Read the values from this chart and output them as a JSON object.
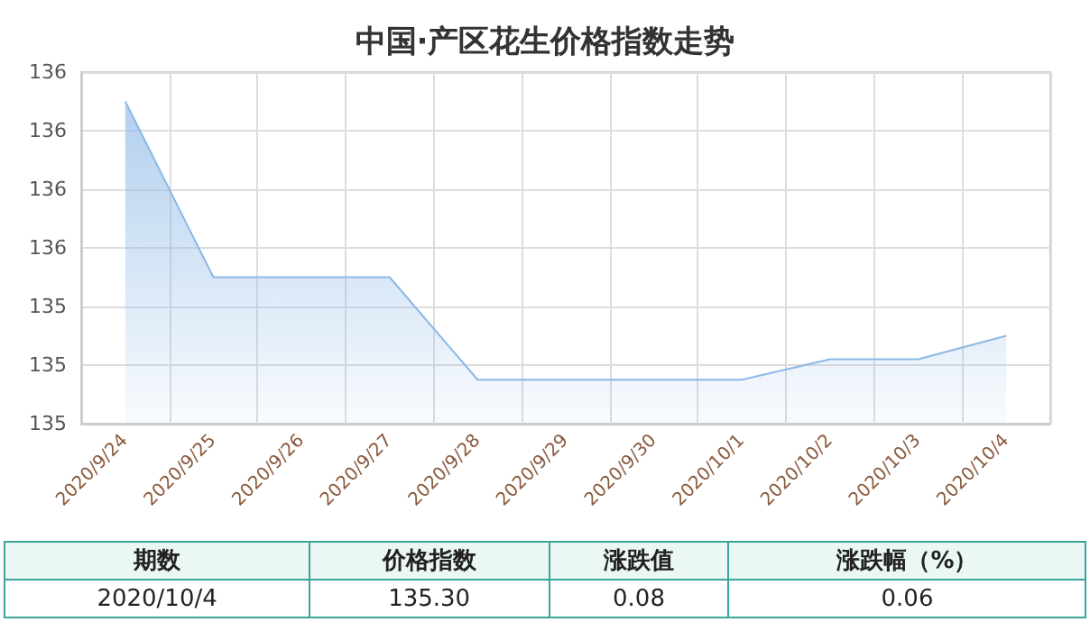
{
  "chart_data": {
    "type": "area",
    "title": "中国·产区花生价格指数走势",
    "categories": [
      "2020/9/24",
      "2020/9/25",
      "2020/9/26",
      "2020/9/27",
      "2020/9/28",
      "2020/9/29",
      "2020/9/30",
      "2020/10/1",
      "2020/10/2",
      "2020/10/3",
      "2020/10/4"
    ],
    "series": [
      {
        "color": "#8cb8e6",
        "values": [
          136.1,
          135.5,
          135.5,
          135.5,
          135.15,
          135.15,
          135.15,
          135.15,
          135.22,
          135.22,
          135.3
        ]
      }
    ],
    "ylim": [
      135.0,
      136.2
    ],
    "yticks": [
      {
        "value": 135.0,
        "label": "135"
      },
      {
        "value": 135.2,
        "label": "135"
      },
      {
        "value": 135.4,
        "label": "135"
      },
      {
        "value": 135.6,
        "label": "136"
      },
      {
        "value": 135.8,
        "label": "136"
      },
      {
        "value": 136.0,
        "label": "136"
      },
      {
        "value": 136.2,
        "label": "136"
      }
    ],
    "grid": true,
    "marker": "none",
    "annotations": [
      "期数",
      "价格指数",
      "涨跌值",
      "涨跌幅（%）",
      "2020/10/4",
      "135.30",
      "0.08",
      "0.06"
    ]
  }
}
